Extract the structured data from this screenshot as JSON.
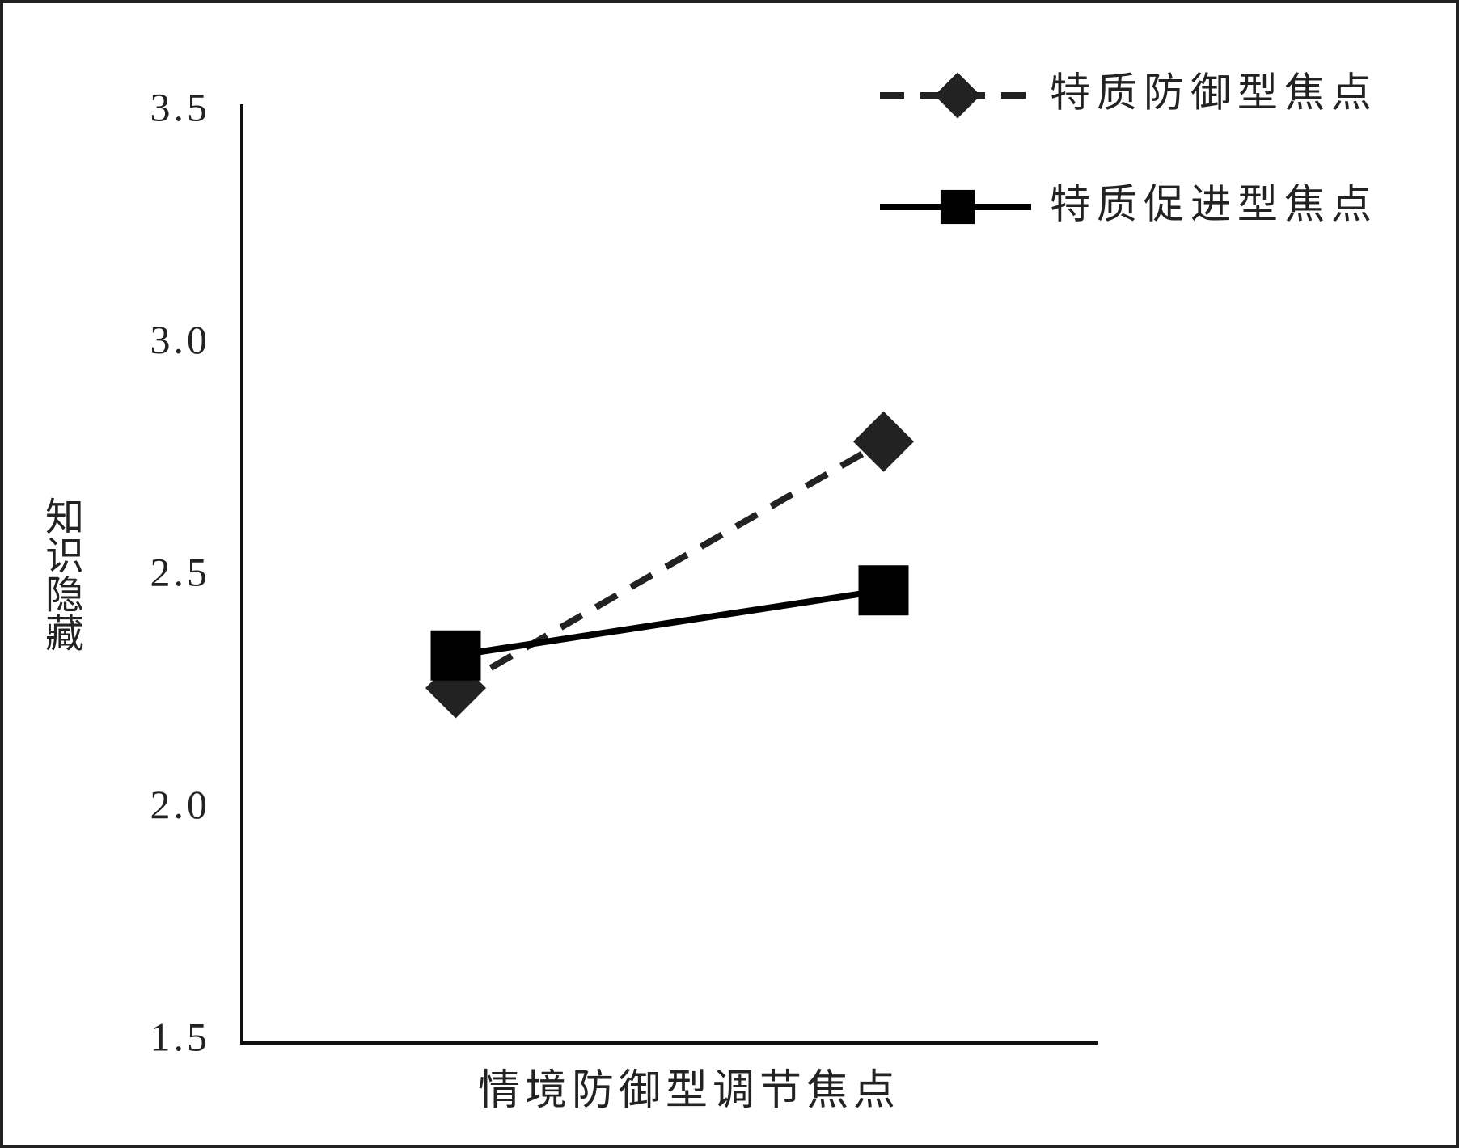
{
  "chart_data": {
    "type": "line",
    "x_label": "情境防御型调节焦点",
    "y_label": "知识隐藏",
    "categories": [
      null,
      null
    ],
    "series": [
      {
        "name": "特质防御型焦点",
        "color": "#222222",
        "dash": true,
        "marker": "diamond",
        "values": [
          2.26,
          2.79
        ]
      },
      {
        "name": "特质促进型焦点",
        "color": "#000000",
        "dash": false,
        "marker": "square",
        "values": [
          2.33,
          2.47
        ]
      }
    ],
    "ylim": [
      1.5,
      3.5
    ],
    "yticks": [
      1.5,
      {
        "value": 2.0,
        "label": "2.0"
      },
      2.5,
      {
        "value": 3.0,
        "label": "3.0"
      },
      3.5
    ],
    "grid": false,
    "legend": "top-right"
  }
}
